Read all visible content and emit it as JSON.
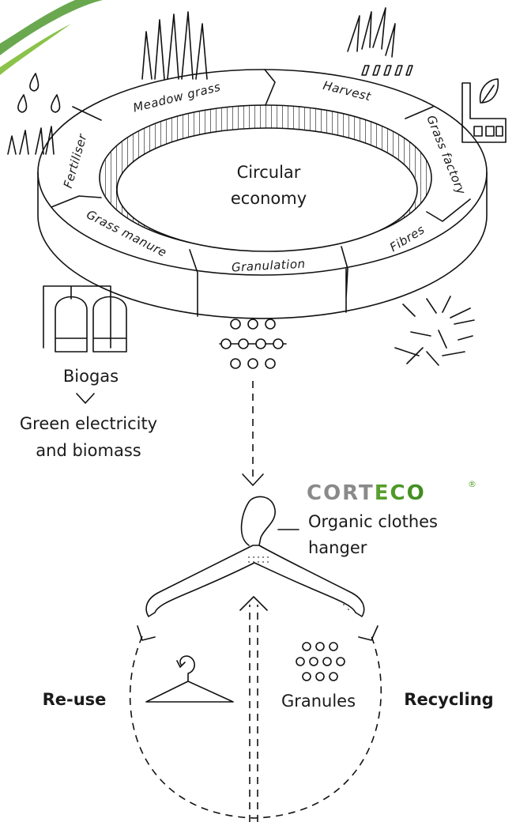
{
  "ring": {
    "center": [
      "Circular",
      "economy"
    ],
    "segments": [
      "Meadow grass",
      "Harvest",
      "Grass factory",
      "Fibres",
      "Granulation",
      "Grass manure",
      "Fertiliser"
    ]
  },
  "biogas": {
    "label": "Biogas",
    "result": [
      "Green electricity",
      "and biomass"
    ]
  },
  "brand": {
    "logo": "CORTECO",
    "registered": "®"
  },
  "product": [
    "Organic clothes",
    "hanger"
  ],
  "loop": {
    "left": "Re-use",
    "middle": "Granules",
    "right": "Recycling"
  }
}
